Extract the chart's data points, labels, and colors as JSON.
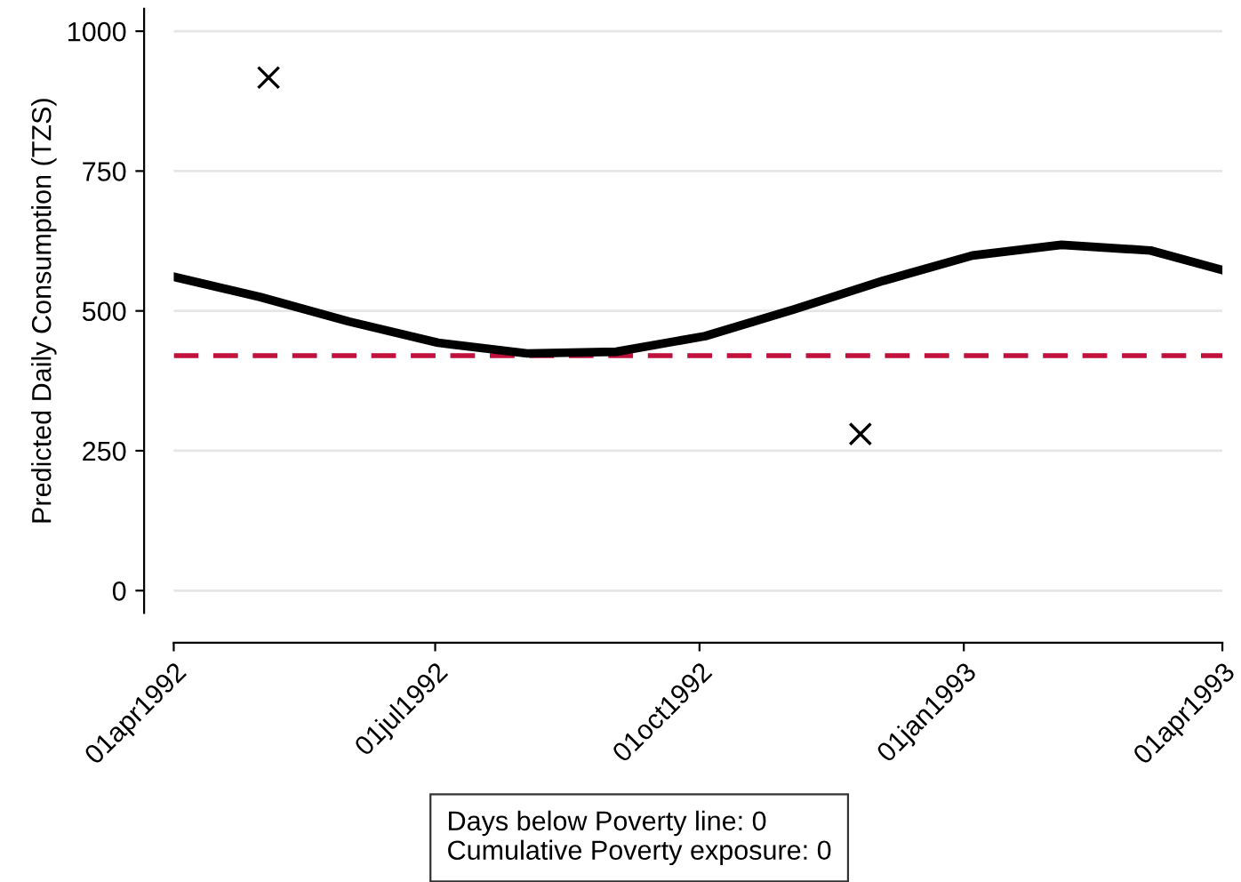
{
  "chart_data": {
    "type": "line",
    "ylabel": "Predicted Daily Consumption (TZS)",
    "xlim": [
      "1992-04-01",
      "1993-04-01"
    ],
    "xticks": [
      {
        "value": "1992-04-01",
        "label": "01apr1992"
      },
      {
        "value": "1992-07-01",
        "label": "01jul1992"
      },
      {
        "value": "1992-10-01",
        "label": "01oct1992"
      },
      {
        "value": "1993-01-01",
        "label": "01jan1993"
      },
      {
        "value": "1993-04-01",
        "label": "01apr1993"
      }
    ],
    "ylim": [
      -40,
      1040
    ],
    "yticks": [
      0,
      250,
      500,
      750,
      1000
    ],
    "grid": "y",
    "series": [
      {
        "color": "#000000",
        "line_style": "solid",
        "marker": "none",
        "x": [
          "1992-04-01",
          "1992-05-01",
          "1992-06-01",
          "1992-07-02",
          "1992-08-02",
          "1992-09-02",
          "1992-10-03",
          "1992-11-03",
          "1992-12-04",
          "1993-01-04",
          "1993-02-04",
          "1993-03-07",
          "1993-04-01"
        ],
        "values": [
          561,
          525,
          481,
          443,
          424,
          427,
          455,
          503,
          554,
          599,
          618,
          608,
          573
        ]
      },
      {
        "type": "scatter",
        "color": "#000000",
        "marker": "cross",
        "x": [
          "1992-05-04",
          "1992-11-26"
        ],
        "values": [
          917,
          280
        ]
      }
    ],
    "ref_lines": [
      {
        "axis": "y",
        "value": 420,
        "color": "#c0103c",
        "line_style": "dashed"
      }
    ],
    "annotations": [
      "Days below Poverty line: 0\nCumulative Poverty exposure: 0"
    ]
  }
}
